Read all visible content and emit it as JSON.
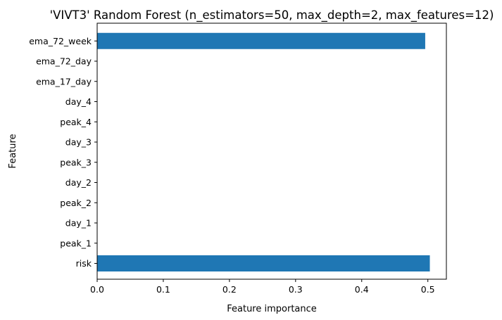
{
  "chart_data": {
    "type": "bar",
    "orientation": "horizontal",
    "title": "'VIVT3' Random Forest (n_estimators=50, max_depth=2, max_features=12)",
    "xlabel": "Feature importance",
    "ylabel": "Feature",
    "categories": [
      "risk",
      "peak_1",
      "day_1",
      "peak_2",
      "day_2",
      "peak_3",
      "day_3",
      "peak_4",
      "day_4",
      "ema_17_day",
      "ema_72_day",
      "ema_72_week"
    ],
    "values": [
      0.503,
      0,
      0,
      0,
      0,
      0,
      0,
      0,
      0,
      0,
      0,
      0.496
    ],
    "xlim": [
      0,
      0.528
    ],
    "xticks": [
      0.0,
      0.1,
      0.2,
      0.3,
      0.4,
      0.5
    ],
    "xtick_labels": [
      "0.0",
      "0.1",
      "0.2",
      "0.3",
      "0.4",
      "0.5"
    ],
    "bar_color": "#1f77b4",
    "grid": false
  }
}
